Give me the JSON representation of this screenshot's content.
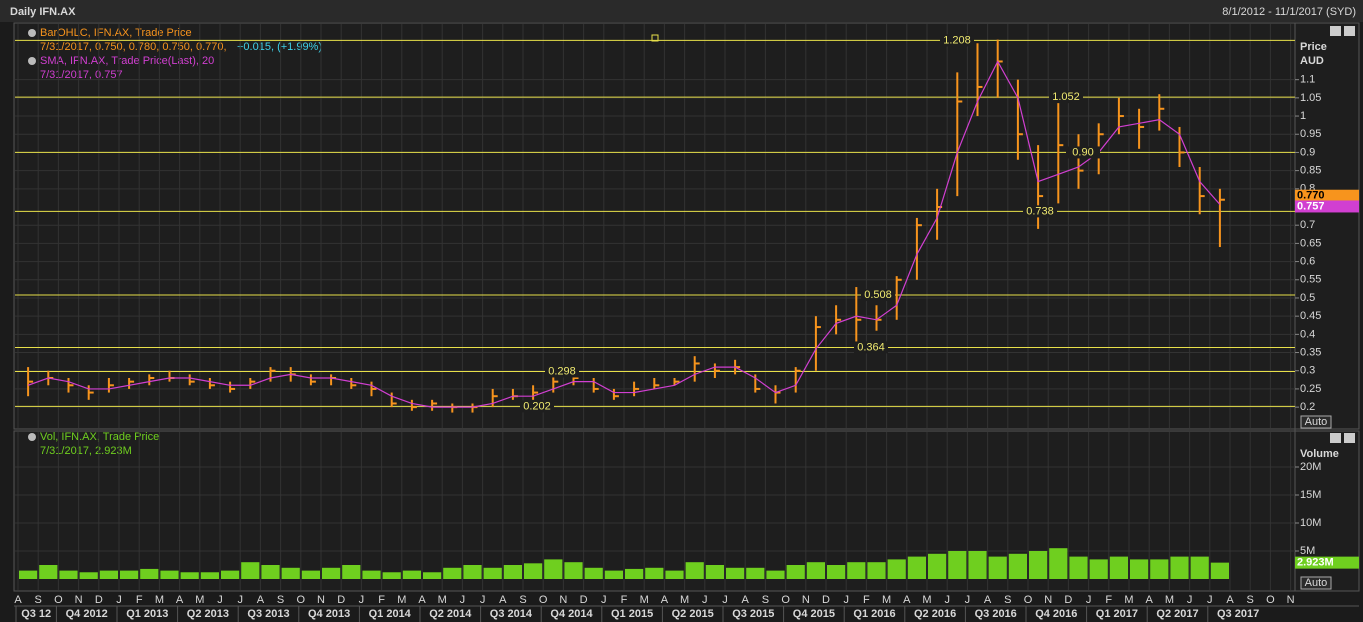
{
  "header": {
    "title": "Daily IFN.AX",
    "range": "8/1/2012 - 11/1/2017 (SYD)"
  },
  "x_axis": {
    "months": [
      "A",
      "S",
      "O",
      "N",
      "D",
      "J",
      "F",
      "M",
      "A",
      "M",
      "J",
      "J",
      "A",
      "S",
      "O",
      "N",
      "D",
      "J",
      "F",
      "M",
      "A",
      "M",
      "J",
      "J",
      "A",
      "S",
      "O",
      "N",
      "D",
      "J",
      "F",
      "M",
      "A",
      "M",
      "J",
      "J",
      "A",
      "S",
      "O",
      "N",
      "D",
      "J",
      "F",
      "M",
      "A",
      "M",
      "J",
      "J",
      "A",
      "S",
      "O",
      "N",
      "D",
      "J",
      "F",
      "M",
      "A",
      "M",
      "J",
      "J",
      "A",
      "S",
      "O",
      "N"
    ],
    "quarters": [
      "Q3 12",
      "Q4 2012",
      "Q1 2013",
      "Q2 2013",
      "Q3 2013",
      "Q4 2013",
      "Q1 2014",
      "Q2 2014",
      "Q3 2014",
      "Q4 2014",
      "Q1 2015",
      "Q2 2015",
      "Q3 2015",
      "Q4 2015",
      "Q1 2016",
      "Q2 2016",
      "Q3 2016",
      "Q4 2016",
      "Q1 2017",
      "Q2 2017",
      "Q3 2017"
    ]
  },
  "buttons": [
    "Auto",
    "Auto"
  ],
  "chart_data": [
    {
      "type": "ohlc",
      "x": [
        "2012-08",
        "2012-09",
        "2012-10",
        "2012-11",
        "2012-12",
        "2013-01",
        "2013-02",
        "2013-03",
        "2013-04",
        "2013-05",
        "2013-06",
        "2013-07",
        "2013-08",
        "2013-09",
        "2013-10",
        "2013-11",
        "2013-12",
        "2014-01",
        "2014-02",
        "2014-03",
        "2014-04",
        "2014-05",
        "2014-06",
        "2014-07",
        "2014-08",
        "2014-09",
        "2014-10",
        "2014-11",
        "2014-12",
        "2015-01",
        "2015-02",
        "2015-03",
        "2015-04",
        "2015-05",
        "2015-06",
        "2015-07",
        "2015-08",
        "2015-09",
        "2015-10",
        "2015-11",
        "2015-12",
        "2016-01",
        "2016-02",
        "2016-03",
        "2016-04",
        "2016-05",
        "2016-06",
        "2016-07",
        "2016-08",
        "2016-09",
        "2016-10",
        "2016-11",
        "2016-12",
        "2017-01",
        "2017-02",
        "2017-03",
        "2017-04",
        "2017-05",
        "2017-06",
        "2017-07"
      ],
      "axis_title": [
        "Price",
        "AUD"
      ],
      "series": [
        {
          "name": "BarOHLC, IFN.AX, Trade Price",
          "color": "#f7941d",
          "last_label": "7/31/2017, 0.750, 0.780, 0.750, 0.770,",
          "change_label": "+0.015, (+1.99%)",
          "badge": "0.770",
          "values": [
            0.27,
            0.28,
            0.26,
            0.24,
            0.26,
            0.27,
            0.28,
            0.28,
            0.27,
            0.26,
            0.25,
            0.27,
            0.3,
            0.29,
            0.27,
            0.28,
            0.26,
            0.25,
            0.21,
            0.2,
            0.21,
            0.2,
            0.2,
            0.23,
            0.23,
            0.24,
            0.27,
            0.28,
            0.25,
            0.23,
            0.25,
            0.26,
            0.27,
            0.32,
            0.3,
            0.31,
            0.25,
            0.24,
            0.3,
            0.42,
            0.44,
            0.44,
            0.44,
            0.55,
            0.7,
            0.75,
            1.04,
            1.08,
            1.15,
            0.95,
            0.78,
            0.92,
            0.85,
            0.95,
            1.0,
            0.97,
            1.02,
            0.9,
            0.78,
            0.77
          ],
          "high": [
            0.31,
            0.3,
            0.28,
            0.26,
            0.28,
            0.28,
            0.29,
            0.3,
            0.29,
            0.28,
            0.27,
            0.28,
            0.31,
            0.31,
            0.29,
            0.29,
            0.28,
            0.27,
            0.24,
            0.22,
            0.22,
            0.21,
            0.21,
            0.25,
            0.25,
            0.26,
            0.29,
            0.3,
            0.28,
            0.25,
            0.27,
            0.28,
            0.28,
            0.34,
            0.32,
            0.33,
            0.29,
            0.26,
            0.31,
            0.45,
            0.48,
            0.53,
            0.48,
            0.56,
            0.72,
            0.8,
            1.12,
            1.2,
            1.21,
            1.1,
            0.92,
            1.05,
            0.95,
            0.98,
            1.05,
            1.02,
            1.06,
            0.97,
            0.86,
            0.8
          ],
          "low": [
            0.23,
            0.26,
            0.24,
            0.22,
            0.24,
            0.25,
            0.26,
            0.27,
            0.26,
            0.25,
            0.24,
            0.25,
            0.27,
            0.27,
            0.26,
            0.26,
            0.25,
            0.23,
            0.2,
            0.19,
            0.19,
            0.185,
            0.185,
            0.2,
            0.22,
            0.22,
            0.24,
            0.26,
            0.24,
            0.22,
            0.23,
            0.25,
            0.26,
            0.27,
            0.28,
            0.29,
            0.24,
            0.21,
            0.24,
            0.3,
            0.4,
            0.36,
            0.41,
            0.44,
            0.55,
            0.66,
            0.78,
            1.0,
            1.05,
            0.88,
            0.69,
            0.76,
            0.8,
            0.84,
            0.95,
            0.91,
            0.96,
            0.86,
            0.73,
            0.64
          ]
        },
        {
          "name": "SMA, IFN.AX, Trade Price(Last),  20",
          "color": "#d13fd1",
          "last_label": "7/31/2017, 0.757",
          "badge": "0.757",
          "values": [
            0.26,
            0.28,
            0.27,
            0.25,
            0.25,
            0.26,
            0.27,
            0.28,
            0.28,
            0.27,
            0.26,
            0.26,
            0.28,
            0.29,
            0.28,
            0.28,
            0.27,
            0.26,
            0.23,
            0.21,
            0.2,
            0.2,
            0.2,
            0.21,
            0.23,
            0.23,
            0.25,
            0.27,
            0.27,
            0.24,
            0.24,
            0.25,
            0.26,
            0.29,
            0.31,
            0.31,
            0.28,
            0.24,
            0.26,
            0.36,
            0.43,
            0.45,
            0.44,
            0.48,
            0.62,
            0.72,
            0.9,
            1.04,
            1.15,
            1.05,
            0.82,
            0.84,
            0.86,
            0.9,
            0.97,
            0.98,
            0.99,
            0.95,
            0.82,
            0.757
          ]
        }
      ],
      "levels": [
        {
          "value": 1.208,
          "label": "1.208"
        },
        {
          "value": 1.052,
          "label": "1.052"
        },
        {
          "value": 0.9,
          "label": "0.90"
        },
        {
          "value": 0.738,
          "label": "0.738"
        },
        {
          "value": 0.508,
          "label": "0.508"
        },
        {
          "value": 0.364,
          "label": "0.364"
        },
        {
          "value": 0.298,
          "label": "0.298"
        },
        {
          "value": 0.202,
          "label": "0.202"
        }
      ],
      "ylim": [
        0.1426,
        1.253
      ],
      "yticks": [
        0.2,
        0.25,
        0.3,
        0.35,
        0.4,
        0.45,
        0.5,
        0.55,
        0.6,
        0.65,
        0.7,
        0.8,
        0.85,
        0.9,
        0.95,
        1,
        1.05,
        1.1
      ],
      "grid": true
    },
    {
      "type": "bar",
      "axis_title": "Volume",
      "series": [
        {
          "name": "Vol, IFN.AX, Trade Price",
          "color": "#6fcf1f",
          "last_label": "7/31/2017, 2.923M",
          "badge": "2.923M",
          "values": [
            1500000,
            2500000,
            1500000,
            1200000,
            1500000,
            1500000,
            1800000,
            1500000,
            1200000,
            1200000,
            1500000,
            3000000,
            2500000,
            2000000,
            1500000,
            2000000,
            2500000,
            1500000,
            1200000,
            1500000,
            1200000,
            2000000,
            2500000,
            2000000,
            2500000,
            2800000,
            3500000,
            3000000,
            2000000,
            1500000,
            1800000,
            2000000,
            1500000,
            3000000,
            2500000,
            2000000,
            2000000,
            1500000,
            2500000,
            3000000,
            2500000,
            3000000,
            3000000,
            3500000,
            4000000,
            4500000,
            5000000,
            5000000,
            4000000,
            4500000,
            5000000,
            5500000,
            4000000,
            3500000,
            4000000,
            3500000,
            3500000,
            4000000,
            4000000,
            2923000
          ]
        }
      ],
      "ylim": [
        0,
        26250000
      ],
      "yticks": [
        {
          "value": 5000000,
          "label": "5M"
        },
        {
          "value": 10000000,
          "label": "10M"
        },
        {
          "value": 15000000,
          "label": "15M"
        },
        {
          "value": 20000000,
          "label": "20M"
        }
      ],
      "grid": true
    }
  ]
}
